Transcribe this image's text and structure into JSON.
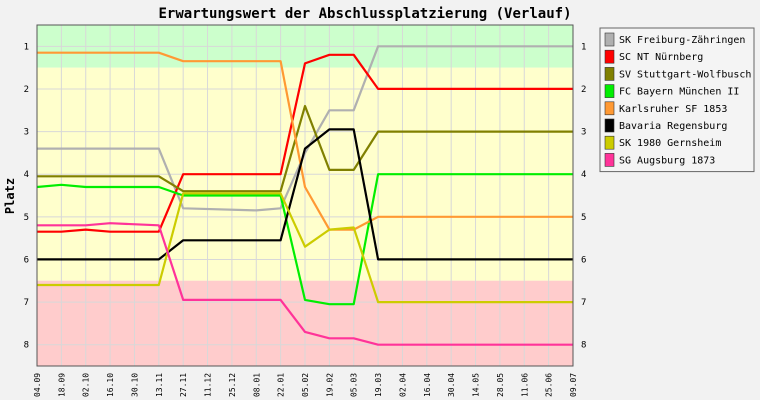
{
  "chart_data": {
    "type": "line",
    "title": "Erwartungswert der Abschlussplatzierung (Verlauf)",
    "ylabel": "Platz",
    "xlabel": "",
    "ylim": [
      0.5,
      8.5
    ],
    "y_inverted": true,
    "yticks": [
      1,
      2,
      3,
      4,
      5,
      6,
      7,
      8
    ],
    "ytick_labels": [
      "1",
      "2",
      "3",
      "4",
      "5",
      "6",
      "7",
      "8"
    ],
    "grid": true,
    "legend_position": "right",
    "categories": [
      "04.09",
      "18.09",
      "02.10",
      "16.10",
      "30.10",
      "13.11",
      "27.11",
      "11.12",
      "25.12",
      "08.01",
      "22.01",
      "05.02",
      "19.02",
      "05.03",
      "19.03",
      "02.04",
      "16.04",
      "30.04",
      "14.05",
      "28.05",
      "11.06",
      "25.06",
      "09.07"
    ],
    "bands": [
      {
        "from": 0.5,
        "to": 1.5,
        "color": "#ccffcc"
      },
      {
        "from": 1.5,
        "to": 6.5,
        "color": "#ffffcc"
      },
      {
        "from": 6.5,
        "to": 8.5,
        "color": "#ffcccc"
      }
    ],
    "series": [
      {
        "name": "SK Freiburg-Zähringen",
        "color": "#b0b0b0",
        "points": [
          [
            0,
            3.4
          ],
          [
            5,
            3.4
          ],
          [
            6,
            4.8
          ],
          [
            9,
            4.85
          ],
          [
            10,
            4.8
          ],
          [
            11,
            3.5
          ],
          [
            12,
            2.5
          ],
          [
            13,
            2.5
          ],
          [
            14,
            1.0
          ],
          [
            22,
            1.0
          ]
        ]
      },
      {
        "name": "SC NT Nürnberg",
        "color": "#ff0000",
        "points": [
          [
            0,
            5.35
          ],
          [
            1,
            5.35
          ],
          [
            2,
            5.3
          ],
          [
            3,
            5.35
          ],
          [
            5,
            5.35
          ],
          [
            6,
            4.0
          ],
          [
            8,
            4.0
          ],
          [
            10,
            4.0
          ],
          [
            11,
            1.4
          ],
          [
            12,
            1.2
          ],
          [
            13,
            1.2
          ],
          [
            14,
            2.0
          ],
          [
            22,
            2.0
          ]
        ]
      },
      {
        "name": "SV Stuttgart-Wolfbusch",
        "color": "#808000",
        "points": [
          [
            0,
            4.05
          ],
          [
            5,
            4.05
          ],
          [
            6,
            4.4
          ],
          [
            10,
            4.4
          ],
          [
            11,
            2.4
          ],
          [
            12,
            3.9
          ],
          [
            13,
            3.9
          ],
          [
            14,
            3.0
          ],
          [
            22,
            3.0
          ]
        ]
      },
      {
        "name": "FC Bayern München II",
        "color": "#00ee00",
        "points": [
          [
            0,
            4.3
          ],
          [
            1,
            4.25
          ],
          [
            2,
            4.3
          ],
          [
            5,
            4.3
          ],
          [
            6,
            4.5
          ],
          [
            10,
            4.5
          ],
          [
            11,
            6.95
          ],
          [
            12,
            7.05
          ],
          [
            13,
            7.05
          ],
          [
            14,
            4.0
          ],
          [
            22,
            4.0
          ]
        ]
      },
      {
        "name": "Karlsruher SF 1853",
        "color": "#ff9933",
        "points": [
          [
            0,
            1.15
          ],
          [
            5,
            1.15
          ],
          [
            6,
            1.35
          ],
          [
            10,
            1.35
          ],
          [
            11,
            4.3
          ],
          [
            12,
            5.3
          ],
          [
            13,
            5.3
          ],
          [
            14,
            5.0
          ],
          [
            22,
            5.0
          ]
        ]
      },
      {
        "name": "Bavaria Regensburg",
        "color": "#000000",
        "points": [
          [
            0,
            6.0
          ],
          [
            5,
            6.0
          ],
          [
            6,
            5.55
          ],
          [
            10,
            5.55
          ],
          [
            11,
            3.4
          ],
          [
            12,
            2.95
          ],
          [
            13,
            2.95
          ],
          [
            14,
            6.0
          ],
          [
            22,
            6.0
          ]
        ]
      },
      {
        "name": "SK 1980 Gernsheim",
        "color": "#cccc00",
        "points": [
          [
            0,
            6.6
          ],
          [
            1,
            6.6
          ],
          [
            2,
            6.6
          ],
          [
            5,
            6.6
          ],
          [
            6,
            4.45
          ],
          [
            10,
            4.45
          ],
          [
            11,
            5.7
          ],
          [
            12,
            5.3
          ],
          [
            13,
            5.25
          ],
          [
            14,
            7.0
          ],
          [
            22,
            7.0
          ]
        ]
      },
      {
        "name": "SG Augsburg 1873",
        "color": "#ff3399",
        "points": [
          [
            0,
            5.2
          ],
          [
            2,
            5.2
          ],
          [
            3,
            5.15
          ],
          [
            5,
            5.2
          ],
          [
            6,
            6.95
          ],
          [
            8,
            6.95
          ],
          [
            10,
            6.95
          ],
          [
            11,
            7.7
          ],
          [
            12,
            7.85
          ],
          [
            13,
            7.85
          ],
          [
            14,
            8.0
          ],
          [
            22,
            8.0
          ]
        ]
      }
    ]
  }
}
